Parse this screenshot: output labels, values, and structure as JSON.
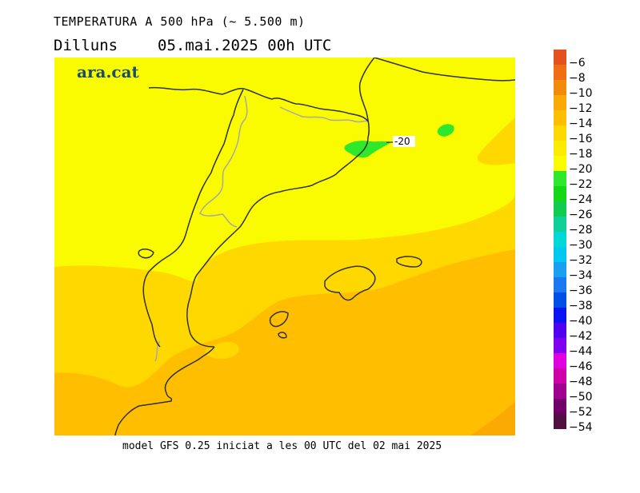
{
  "header": {
    "title": "TEMPERATURA A 500 hPa (~ 5.500 m)",
    "day": "Dilluns",
    "datetime": "05.mai.2025 00h UTC"
  },
  "logo": {
    "text": "ara.cat",
    "color": "#1a4c6e"
  },
  "footer": {
    "text": "model GFS 0.25 iniciat a les 00 UTC del 02 mai 2025"
  },
  "map": {
    "contour_label": "-20",
    "fill_colors": {
      "warmer_zone": "#ffbf00",
      "mid_zone": "#ffd800",
      "cool_zone": "#fbfb00",
      "cold_pocket": "#2ee82e"
    },
    "coast_color": "#303030",
    "border_color": "#a8a8a8"
  },
  "legend": {
    "labels": [
      "-6",
      "-8",
      "-10",
      "-12",
      "-14",
      "-16",
      "-18",
      "-20",
      "-22",
      "-24",
      "-26",
      "-28",
      "-30",
      "-32",
      "-34",
      "-36",
      "-38",
      "-40",
      "-42",
      "-44",
      "-46",
      "-48",
      "-50",
      "-52",
      "-54"
    ],
    "colors": [
      "#e5501f",
      "#f06d13",
      "#f58a0a",
      "#fbaa03",
      "#ffbf00",
      "#ffd800",
      "#fbeb00",
      "#fbfb00",
      "#2ee82e",
      "#13d813",
      "#12cc52",
      "#0fd099",
      "#00d8d8",
      "#00c8f0",
      "#1aa0f0",
      "#1a78f0",
      "#0050e8",
      "#0a14f0",
      "#5000f0",
      "#8000f0",
      "#e000e0",
      "#d000a8",
      "#a00090",
      "#700068",
      "#501040"
    ]
  }
}
